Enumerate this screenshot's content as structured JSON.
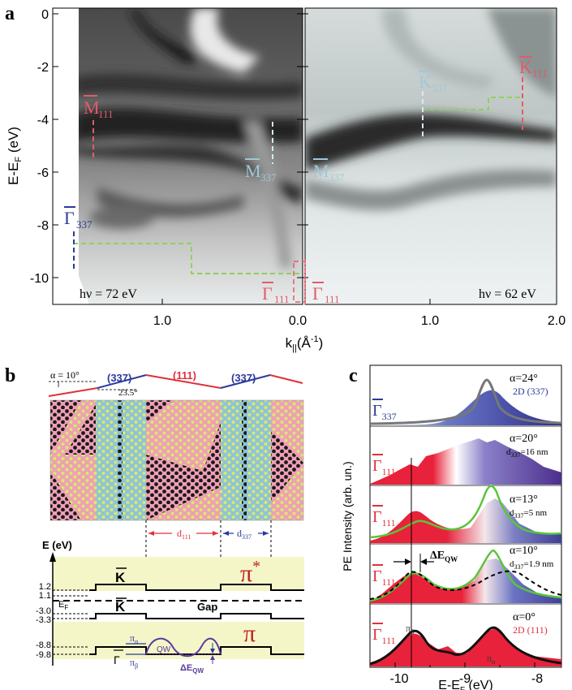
{
  "panel_letters": {
    "a": "a",
    "b": "b",
    "c": "c"
  },
  "panel_a": {
    "ylabel_main": "E-E",
    "ylabel_sub": "F",
    "ylabel_unit": " (eV)",
    "xlabel_main": "k",
    "xlabel_sub": "||",
    "xlabel_unit": "(Å",
    "xlabel_sup": "-1",
    "xlabel_close": ")",
    "yticks": [
      "0",
      "-2",
      "-4",
      "-6",
      "-8",
      "-10"
    ],
    "xticks_left": [
      "1.0",
      "0.0"
    ],
    "xticks_right": [
      "1.0",
      "2.0"
    ],
    "hv_left": "hν = 72 eV",
    "hv_right": "hν = 62 eV",
    "labels": {
      "M111_base": "M",
      "M111_sub": "111",
      "M337_left_base": "M",
      "M337_left_sub": "337",
      "M337_right_base": "M",
      "M337_right_sub": "337",
      "G337_base": "Γ",
      "G337_sub": "337",
      "G111_left_base": "Γ",
      "G111_left_sub": "111",
      "G111_right_base": "Γ",
      "G111_right_sub": "111",
      "K337_base": "K",
      "K337_sub": "337",
      "K111_base": "K",
      "K111_sub": "111"
    }
  },
  "panel_b": {
    "alpha": "α = 10°",
    "angle2": "23.5°",
    "facet_337_left": "(337)",
    "facet_111": "(111)",
    "facet_337_right": "(337)",
    "d111_base": "d",
    "d111_sub": "111",
    "d337_base": "d",
    "d337_sub": "337",
    "energy_axis": "E (eV)",
    "energy_ticks": [
      "1.2",
      "1.1",
      "-3.0",
      "-3.3",
      "-8.8",
      "-9.8"
    ],
    "ef_base": "E",
    "ef_sub": "F",
    "k_upper": "K",
    "k_lower": "K",
    "gamma": "Γ",
    "gap": "Gap",
    "pi_star": "π",
    "pi_star_sup": "*",
    "pi": "π",
    "pi_alpha_base": "π",
    "pi_alpha_sub": "α",
    "pi_beta_base": "π",
    "pi_beta_sub": "β",
    "qw": "QW",
    "delta_base": "ΔE",
    "delta_sub": "QW"
  },
  "panel_c": {
    "ylabel": "PE Intensity (arb. un.)",
    "xlabel": "E-E",
    "xlabel_sub": "F",
    "xlabel_unit": " (eV)",
    "xticks": [
      "-10",
      "-9",
      "-8"
    ],
    "rows": [
      {
        "gamma_base": "Γ",
        "gamma_sub": "337",
        "alpha": "α=24°",
        "note": "2D (337)",
        "note_sub": ""
      },
      {
        "gamma_base": "Γ",
        "gamma_sub": "111",
        "alpha": "α=20°",
        "note": "d",
        "note_sub": "337",
        "note_val": "=16 nm"
      },
      {
        "gamma_base": "Γ",
        "gamma_sub": "111",
        "alpha": "α=13°",
        "note": "d",
        "note_sub": "337",
        "note_val": "=5 nm"
      },
      {
        "gamma_base": "Γ",
        "gamma_sub": "111",
        "alpha": "α=10°",
        "note": "d",
        "note_sub": "337",
        "note_val": "=1.9 nm"
      },
      {
        "gamma_base": "Γ",
        "gamma_sub": "111",
        "alpha": "α=0°",
        "note": "2D (111)",
        "note_sub": ""
      }
    ],
    "delta_base": "ΔE",
    "delta_sub": "QW",
    "pi_beta_base": "π",
    "pi_beta_sub": "β",
    "pi_alpha_base": "π",
    "pi_alpha_sub": "α"
  },
  "colors": {
    "red": "#e0303a",
    "blue": "#2b3a9c",
    "green": "#5ac43a",
    "cyan_label": "#9ec9d6",
    "pink_label": "#e35a6a",
    "panel_b_band": "#f4f6c8"
  }
}
